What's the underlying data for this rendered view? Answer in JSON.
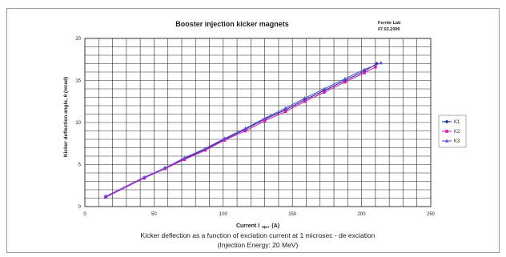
{
  "chart_data": {
    "type": "line",
    "title": "Booster injection kicker magnets",
    "note_lines": [
      "Ferrite Lab",
      "07.02.2006"
    ],
    "xlabel": "Current I",
    "xlabel_subscript": "sp.r",
    "xlabel_unit": "(A)",
    "ylabel": "Kicker deflection angle, θ (mrad)",
    "caption_lines": [
      "Kicker deflection as a function of exciation current at 1 microsec - de exciation",
      "(Injection Energy: 20 MeV)"
    ],
    "xlim": [
      0,
      250
    ],
    "ylim": [
      0,
      20
    ],
    "x_ticks": [
      0,
      50,
      100,
      150,
      200,
      250
    ],
    "y_ticks": [
      0,
      5,
      10,
      15,
      20
    ],
    "grid": true,
    "legend_position": "right",
    "series": [
      {
        "name": "K1",
        "color": "#1f2f8f",
        "marker": "diamond",
        "x": [
          15,
          43,
          58,
          72,
          87,
          101,
          116,
          130,
          145,
          159,
          173,
          188,
          202,
          211
        ],
        "y": [
          1.2,
          3.4,
          4.6,
          5.7,
          6.8,
          8.0,
          9.2,
          10.4,
          11.5,
          12.7,
          13.8,
          15.0,
          16.1,
          17.0
        ]
      },
      {
        "name": "K2",
        "color": "#d81bbf",
        "marker": "square",
        "x": [
          15,
          43,
          58,
          72,
          87,
          101,
          116,
          130,
          145,
          159,
          173,
          188,
          202,
          210
        ],
        "y": [
          1.1,
          3.4,
          4.5,
          5.6,
          6.7,
          7.9,
          9.0,
          10.2,
          11.3,
          12.5,
          13.6,
          14.8,
          15.9,
          16.6
        ]
      },
      {
        "name": "K3",
        "color": "#5a4fd6",
        "marker": "triangle",
        "x": [
          15,
          43,
          58,
          72,
          87,
          101,
          116,
          130,
          145,
          159,
          173,
          188,
          202,
          214
        ],
        "y": [
          1.2,
          3.5,
          4.6,
          5.8,
          6.9,
          8.1,
          9.3,
          10.5,
          11.7,
          12.9,
          14.0,
          15.2,
          16.3,
          17.1
        ]
      }
    ]
  }
}
